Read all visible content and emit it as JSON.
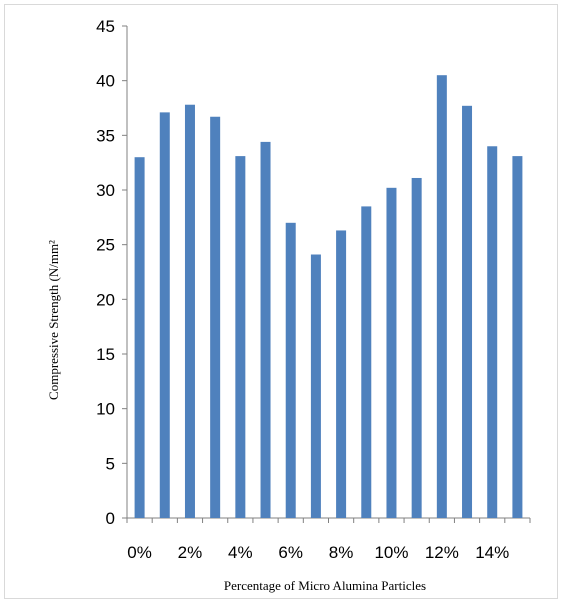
{
  "chart_data": {
    "type": "bar",
    "categories": [
      "0%",
      "1%",
      "2%",
      "3%",
      "4%",
      "5%",
      "6%",
      "7%",
      "8%",
      "9%",
      "10%",
      "11%",
      "12%",
      "13%",
      "14%",
      "15%"
    ],
    "x_tick_labels": [
      "0%",
      "2%",
      "4%",
      "6%",
      "8%",
      "10%",
      "12%",
      "14%"
    ],
    "values": [
      33.0,
      37.1,
      37.8,
      36.7,
      33.1,
      34.4,
      27.0,
      24.1,
      26.3,
      28.5,
      30.2,
      31.1,
      40.5,
      37.7,
      34.0,
      33.1
    ],
    "xlabel": "Percentage of Micro Alumina Particles",
    "ylabel": "Compressive Strength (N/mm²",
    "ylim": [
      0,
      45
    ],
    "y_ticks": [
      0,
      5,
      10,
      15,
      20,
      25,
      30,
      35,
      40,
      45
    ],
    "grid": false,
    "bar_color": "#4f81bd",
    "axis_color": "#808080"
  }
}
